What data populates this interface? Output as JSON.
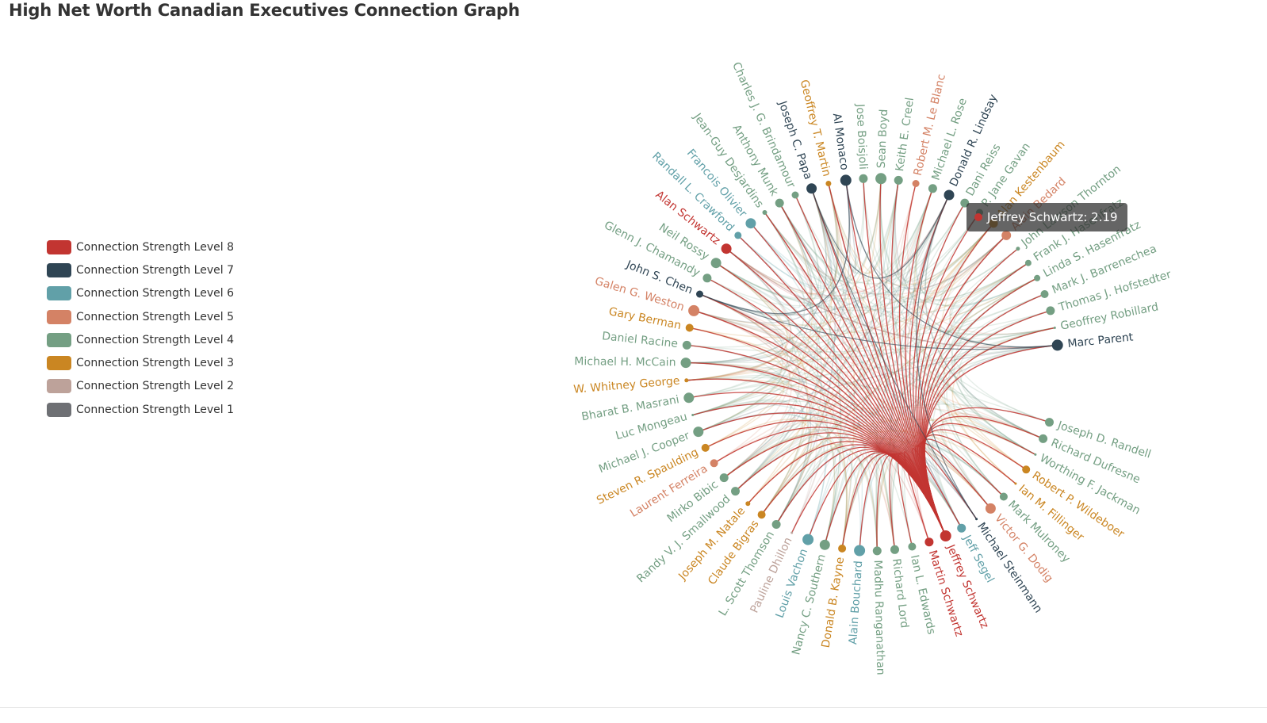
{
  "title": "High Net Worth Canadian Executives Connection Graph",
  "legend": [
    {
      "label": "Connection Strength Level 8",
      "color": "#c23531"
    },
    {
      "label": "Connection Strength Level 7",
      "color": "#2f4554"
    },
    {
      "label": "Connection Strength Level 6",
      "color": "#61a0a8"
    },
    {
      "label": "Connection Strength Level 5",
      "color": "#d48265"
    },
    {
      "label": "Connection Strength Level 4",
      "color": "#749f83"
    },
    {
      "label": "Connection Strength Level 3",
      "color": "#ca8622"
    },
    {
      "label": "Connection Strength Level 2",
      "color": "#bda29a"
    },
    {
      "label": "Connection Strength Level 1",
      "color": "#6e7074"
    }
  ],
  "tooltip": {
    "text": "Jeffrey Schwartz: 2.19",
    "color": "#c23531"
  },
  "chart_data": {
    "type": "graph",
    "layout": "circular",
    "focus_node": "Jeffrey Schwartz",
    "nodes": [
      {
        "name": "Marc Parent",
        "level": 7,
        "size": 14
      },
      {
        "name": "Geoffrey Robillard",
        "level": 4,
        "size": 3
      },
      {
        "name": "Thomas J. Hofstedter",
        "level": 4,
        "size": 11
      },
      {
        "name": "Mark J. Barrenechea",
        "level": 4,
        "size": 10
      },
      {
        "name": "Linda S. Hasenfratz",
        "level": 4,
        "size": 8
      },
      {
        "name": "Frank J. Hasenfratz",
        "level": 4,
        "size": 8
      },
      {
        "name": "John Lawson Thornton",
        "level": 4,
        "size": 5
      },
      {
        "name": "Alain Bedard",
        "level": 5,
        "size": 12
      },
      {
        "name": "Alan Kestenbaum",
        "level": 3,
        "size": 11
      },
      {
        "name": "P. Jane Gavan",
        "level": 4,
        "size": 9
      },
      {
        "name": "Dani Reiss",
        "level": 4,
        "size": 11
      },
      {
        "name": "Donald R. Lindsay",
        "level": 7,
        "size": 13
      },
      {
        "name": "Michael L. Rose",
        "level": 4,
        "size": 11
      },
      {
        "name": "Robert M. Le Blanc",
        "level": 5,
        "size": 9
      },
      {
        "name": "Keith E. Creel",
        "level": 4,
        "size": 11
      },
      {
        "name": "Sean Boyd",
        "level": 4,
        "size": 14
      },
      {
        "name": "Jose Boisjoli",
        "level": 4,
        "size": 11
      },
      {
        "name": "Al Monaco",
        "level": 7,
        "size": 14
      },
      {
        "name": "Geoffrey T. Martin",
        "level": 3,
        "size": 7
      },
      {
        "name": "Joseph C. Papa",
        "level": 7,
        "size": 13
      },
      {
        "name": "Charles J. G. Brindamour",
        "level": 4,
        "size": 9
      },
      {
        "name": "Anthony Munk",
        "level": 4,
        "size": 11
      },
      {
        "name": "Jean-Guy Desjardins",
        "level": 4,
        "size": 6
      },
      {
        "name": "Francois Olivier",
        "level": 6,
        "size": 13
      },
      {
        "name": "Randall L. Crawford",
        "level": 6,
        "size": 9
      },
      {
        "name": "Alan Schwartz",
        "level": 8,
        "size": 13
      },
      {
        "name": "Neil Rossy",
        "level": 4,
        "size": 13
      },
      {
        "name": "Glenn J. Chamandy",
        "level": 4,
        "size": 11
      },
      {
        "name": "John S. Chen",
        "level": 7,
        "size": 9
      },
      {
        "name": "Galen G. Weston",
        "level": 5,
        "size": 14
      },
      {
        "name": "Gary Berman",
        "level": 3,
        "size": 10
      },
      {
        "name": "Daniel Racine",
        "level": 4,
        "size": 11
      },
      {
        "name": "Michael H. McCain",
        "level": 4,
        "size": 13
      },
      {
        "name": "W. Whitney George",
        "level": 3,
        "size": 5
      },
      {
        "name": "Bharat B. Masrani",
        "level": 4,
        "size": 13
      },
      {
        "name": "Luc Mongeau",
        "level": 4,
        "size": 3
      },
      {
        "name": "Michael J. Cooper",
        "level": 4,
        "size": 13
      },
      {
        "name": "Steven R. Spaulding",
        "level": 3,
        "size": 10
      },
      {
        "name": "Laurent Ferreira",
        "level": 5,
        "size": 10
      },
      {
        "name": "Mirko Bibic",
        "level": 4,
        "size": 11
      },
      {
        "name": "Randy V. J. Smallwood",
        "level": 4,
        "size": 11
      },
      {
        "name": "Joseph M. Natale",
        "level": 3,
        "size": 6
      },
      {
        "name": "Claude Bigras",
        "level": 3,
        "size": 10
      },
      {
        "name": "L. Scott Thomson",
        "level": 4,
        "size": 11
      },
      {
        "name": "Pauline Dhillon",
        "level": 2,
        "size": 3
      },
      {
        "name": "Louis Vachon",
        "level": 6,
        "size": 14
      },
      {
        "name": "Nancy C. Southern",
        "level": 4,
        "size": 13
      },
      {
        "name": "Donald B. Kayne",
        "level": 3,
        "size": 10
      },
      {
        "name": "Alain Bouchard",
        "level": 6,
        "size": 14
      },
      {
        "name": "Madhu Ranganathan",
        "level": 4,
        "size": 11
      },
      {
        "name": "Richard Lord",
        "level": 4,
        "size": 11
      },
      {
        "name": "Ian L. Edwards",
        "level": 4,
        "size": 10
      },
      {
        "name": "Martin Schwartz",
        "level": 8,
        "size": 11
      },
      {
        "name": "Jeffrey Schwartz",
        "level": 8,
        "size": 14
      },
      {
        "name": "Jeff Segel",
        "level": 6,
        "size": 11
      },
      {
        "name": "Michael Steinmann",
        "level": 7,
        "size": 3
      },
      {
        "name": "Victor G. Dodig",
        "level": 5,
        "size": 13
      },
      {
        "name": "Mark Mulroney",
        "level": 4,
        "size": 10
      },
      {
        "name": "Ian M. Fillinger",
        "level": 3,
        "size": 3
      },
      {
        "name": "Robert P. Wildeboer",
        "level": 3,
        "size": 10
      },
      {
        "name": "Worthing F. Jackman",
        "level": 4,
        "size": 3
      },
      {
        "name": "Richard Dufresne",
        "level": 4,
        "size": 11
      },
      {
        "name": "Joseph D. Randell",
        "level": 4,
        "size": 11
      }
    ]
  }
}
